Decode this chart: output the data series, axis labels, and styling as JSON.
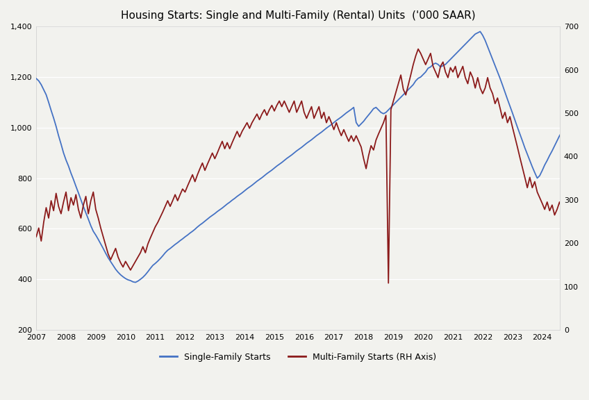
{
  "title": "Housing Starts: Single and Multi-Family (Rental) Units  ('000 SAAR)",
  "title_fontsize": 11,
  "left_ylim": [
    200,
    1400
  ],
  "right_ylim": [
    0,
    700
  ],
  "left_yticks": [
    200,
    400,
    600,
    800,
    1000,
    1200,
    1400
  ],
  "right_yticks": [
    0,
    100,
    200,
    300,
    400,
    500,
    600,
    700
  ],
  "line_color_single": "#4472C4",
  "line_color_multi": "#8B1A1A",
  "legend_single": "Single-Family Starts",
  "legend_multi": "Multi-Family Starts (RH Axis)",
  "background_color": "#F2F2EE",
  "single_family": [
    1194,
    1185,
    1170,
    1150,
    1130,
    1100,
    1068,
    1038,
    1005,
    968,
    935,
    900,
    872,
    848,
    820,
    795,
    768,
    742,
    715,
    688,
    663,
    638,
    612,
    590,
    575,
    558,
    540,
    522,
    503,
    485,
    470,
    455,
    440,
    428,
    418,
    410,
    403,
    398,
    395,
    390,
    388,
    393,
    400,
    408,
    418,
    430,
    443,
    455,
    463,
    472,
    482,
    493,
    505,
    515,
    522,
    530,
    538,
    545,
    553,
    560,
    568,
    575,
    583,
    590,
    598,
    607,
    615,
    622,
    630,
    638,
    646,
    653,
    660,
    668,
    675,
    682,
    690,
    698,
    705,
    713,
    720,
    728,
    735,
    742,
    750,
    758,
    765,
    772,
    780,
    788,
    795,
    802,
    810,
    818,
    825,
    832,
    840,
    848,
    855,
    862,
    870,
    878,
    885,
    892,
    900,
    908,
    915,
    922,
    930,
    938,
    945,
    952,
    960,
    968,
    975,
    982,
    990,
    998,
    1005,
    1012,
    1020,
    1028,
    1035,
    1042,
    1050,
    1058,
    1065,
    1072,
    1080,
    1020,
    1005,
    1015,
    1025,
    1038,
    1050,
    1062,
    1075,
    1080,
    1070,
    1060,
    1055,
    1060,
    1070,
    1080,
    1090,
    1100,
    1110,
    1120,
    1130,
    1140,
    1150,
    1160,
    1170,
    1185,
    1195,
    1200,
    1210,
    1220,
    1235,
    1240,
    1250,
    1255,
    1250,
    1240,
    1245,
    1250,
    1260,
    1270,
    1280,
    1290,
    1300,
    1310,
    1320,
    1330,
    1340,
    1350,
    1360,
    1370,
    1375,
    1380,
    1365,
    1345,
    1320,
    1295,
    1270,
    1245,
    1220,
    1195,
    1168,
    1140,
    1112,
    1085,
    1058,
    1030,
    1002,
    975,
    948,
    920,
    895,
    870,
    845,
    822,
    800,
    810,
    830,
    852,
    870,
    890,
    908,
    928,
    948,
    968,
    985,
    1000,
    1010,
    1020
  ],
  "multi_family": [
    215,
    235,
    205,
    248,
    282,
    258,
    298,
    275,
    315,
    285,
    268,
    295,
    318,
    275,
    305,
    288,
    312,
    278,
    258,
    288,
    308,
    268,
    298,
    318,
    278,
    258,
    235,
    215,
    195,
    175,
    162,
    175,
    188,
    168,
    155,
    145,
    158,
    148,
    138,
    148,
    158,
    168,
    178,
    192,
    178,
    198,
    212,
    225,
    238,
    248,
    260,
    272,
    285,
    298,
    285,
    298,
    312,
    298,
    312,
    325,
    318,
    332,
    345,
    358,
    342,
    358,
    372,
    385,
    368,
    382,
    395,
    408,
    395,
    408,
    422,
    435,
    418,
    432,
    418,
    432,
    445,
    458,
    445,
    458,
    468,
    478,
    465,
    478,
    488,
    498,
    485,
    498,
    508,
    495,
    508,
    518,
    505,
    518,
    528,
    515,
    528,
    515,
    502,
    515,
    528,
    502,
    515,
    528,
    502,
    488,
    502,
    515,
    488,
    502,
    515,
    488,
    502,
    478,
    492,
    478,
    462,
    478,
    462,
    448,
    462,
    448,
    435,
    448,
    435,
    448,
    435,
    422,
    395,
    372,
    402,
    425,
    415,
    438,
    452,
    465,
    478,
    495,
    108,
    508,
    528,
    548,
    568,
    588,
    555,
    542,
    565,
    588,
    612,
    632,
    648,
    638,
    625,
    612,
    625,
    638,
    608,
    595,
    582,
    608,
    618,
    595,
    582,
    605,
    595,
    608,
    582,
    595,
    608,
    582,
    568,
    595,
    582,
    558,
    582,
    558,
    545,
    558,
    582,
    558,
    545,
    522,
    535,
    512,
    488,
    502,
    478,
    492,
    468,
    445,
    422,
    398,
    375,
    352,
    328,
    352,
    328,
    342,
    318,
    305,
    292,
    278,
    295,
    275,
    288,
    265,
    278,
    295,
    278,
    262,
    285,
    292
  ],
  "start_year": 2007,
  "n_months": 216
}
